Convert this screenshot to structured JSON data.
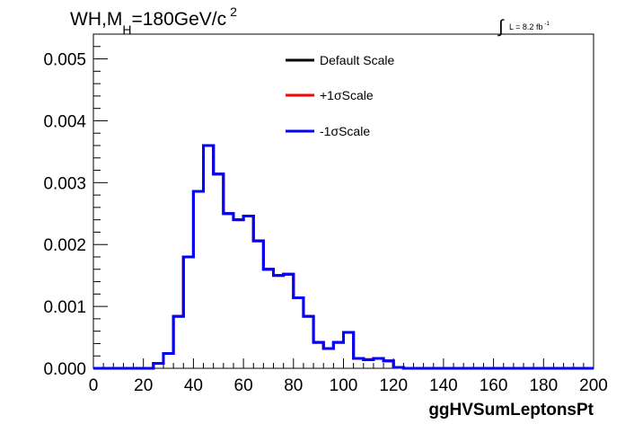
{
  "chart_data": {
    "type": "line",
    "title_main": "WH,M",
    "title_sub": "H",
    "title_rest": "=180GeV/c",
    "title_sup": "2",
    "lumi_label": "L = 8.2 fb",
    "lumi_sup": "-1",
    "xlabel": "ggHVSumLeptonsPt",
    "ylabel": "",
    "xlim": [
      0,
      200
    ],
    "ylim": [
      0,
      0.0054
    ],
    "x_ticks": [
      "0",
      "20",
      "40",
      "60",
      "80",
      "100",
      "120",
      "140",
      "160",
      "180",
      "200"
    ],
    "y_ticks": [
      "0.000",
      "0.001",
      "0.002",
      "0.003",
      "0.004",
      "0.005"
    ],
    "bin_width": 4,
    "bin_edges_start": 0,
    "legend_position": "top-right",
    "colors": {
      "default": "#000000",
      "plus": "#ff0000",
      "minus": "#0000ff"
    },
    "series": [
      {
        "name": "Default Scale",
        "values": [
          0,
          0,
          0,
          0,
          0,
          0,
          8e-05,
          0.00024,
          0.00084,
          0.0018,
          0.00286,
          0.0036,
          0.00314,
          0.0025,
          0.0024,
          0.00246,
          0.00206,
          0.0016,
          0.0015,
          0.00152,
          0.00114,
          0.00084,
          0.00042,
          0.00032,
          0.00042,
          0.00058,
          0.00016,
          0.00014,
          0.00016,
          0.00012,
          1.5e-05,
          0,
          0,
          0,
          0,
          0,
          0,
          0,
          0,
          0,
          0,
          0,
          0,
          0,
          0,
          0,
          0,
          0,
          0,
          0
        ]
      },
      {
        "name": "+1σScale",
        "values": [
          0,
          0,
          0,
          0,
          0,
          0,
          8e-05,
          0.00024,
          0.00084,
          0.0018,
          0.00286,
          0.0036,
          0.00314,
          0.0025,
          0.0024,
          0.00246,
          0.00206,
          0.0016,
          0.0015,
          0.00152,
          0.00114,
          0.00084,
          0.00042,
          0.00032,
          0.00042,
          0.00058,
          0.00016,
          0.00014,
          0.00016,
          0.00012,
          1.5e-05,
          0,
          0,
          0,
          0,
          0,
          0,
          0,
          0,
          0,
          0,
          0,
          0,
          0,
          0,
          0,
          0,
          0,
          0,
          0
        ]
      },
      {
        "name": "-1σScale",
        "values": [
          0,
          0,
          0,
          0,
          0,
          0,
          8e-05,
          0.00024,
          0.00084,
          0.0018,
          0.00286,
          0.0036,
          0.00314,
          0.0025,
          0.0024,
          0.00246,
          0.00206,
          0.0016,
          0.0015,
          0.00152,
          0.00114,
          0.00084,
          0.00042,
          0.00032,
          0.00042,
          0.00058,
          0.00016,
          0.00014,
          0.00016,
          0.00012,
          1.5e-05,
          0,
          0,
          0,
          0,
          0,
          0,
          0,
          0,
          0,
          0,
          0,
          0,
          0,
          0,
          0,
          0,
          0,
          0,
          0
        ]
      }
    ]
  }
}
